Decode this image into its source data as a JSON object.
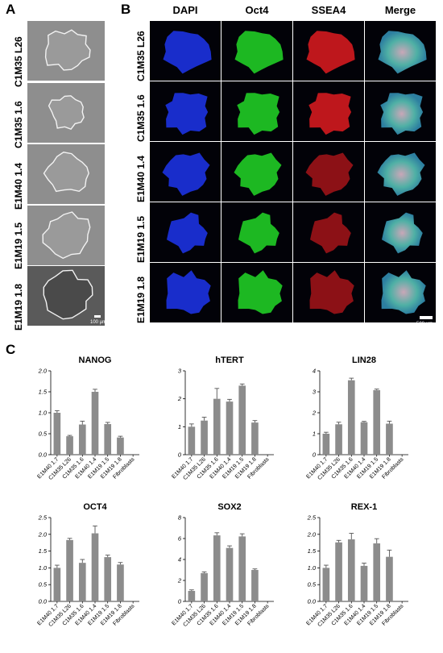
{
  "panels": {
    "a": "A",
    "b": "B",
    "c": "C"
  },
  "row_labels": [
    "C1M35 L26",
    "C1M35 1.6",
    "E1M40 1.4",
    "E1M19 1.5",
    "E1M19 1.8"
  ],
  "stain_headers": [
    "DAPI",
    "Oct4",
    "SSEA4",
    "Merge"
  ],
  "scale_a": "100 µm",
  "scale_b": "500 µm",
  "colors": {
    "bar": "#8c8c8c",
    "dapi": "#1a2fd6",
    "oct4": "#1fc224",
    "ssea4": "#c8181d"
  },
  "chart_data": [
    {
      "type": "bar",
      "title": "NANOG",
      "categories": [
        "E1M40 1.7",
        "C1M35 L26",
        "C1M35 1.6",
        "E1M40 1.4",
        "E1M19 1.5",
        "E1M19 1.8",
        "Fibroblasts"
      ],
      "values": [
        1.0,
        0.44,
        0.72,
        1.5,
        0.73,
        0.41,
        0
      ],
      "errors": [
        0.05,
        0.02,
        0.08,
        0.06,
        0.04,
        0.03,
        0
      ],
      "ylim": [
        0,
        2.0
      ],
      "yticks": [
        "0.0",
        "0.5",
        "1.0",
        "1.5",
        "2.0"
      ]
    },
    {
      "type": "bar",
      "title": "hTERT",
      "categories": [
        "E1M40 1.7",
        "C1M35 L26",
        "C1M35 1.6",
        "E1M40 1.4",
        "E1M19 1.5",
        "E1M19 1.8",
        "Fibroblasts"
      ],
      "values": [
        1.0,
        1.22,
        2.0,
        1.9,
        2.47,
        1.15,
        0
      ],
      "errors": [
        0.1,
        0.12,
        0.37,
        0.08,
        0.06,
        0.07,
        0
      ],
      "ylim": [
        0,
        3
      ],
      "yticks": [
        "0",
        "1",
        "2",
        "3"
      ]
    },
    {
      "type": "bar",
      "title": "LIN28",
      "categories": [
        "E1M40 1.7",
        "C1M35 L26",
        "C1M35 1.6",
        "E1M40 1.4",
        "E1M19 1.5",
        "E1M19 1.8",
        "Fibroblasts"
      ],
      "values": [
        1.0,
        1.45,
        3.55,
        1.55,
        3.08,
        1.48,
        0
      ],
      "errors": [
        0.07,
        0.1,
        0.1,
        0.04,
        0.05,
        0.12,
        0
      ],
      "ylim": [
        0,
        4
      ],
      "yticks": [
        "0",
        "1",
        "2",
        "3",
        "4"
      ]
    },
    {
      "type": "bar",
      "title": "OCT4",
      "categories": [
        "E1M40 1.7",
        "C1M35 L26",
        "C1M35 1.6",
        "E1M40 1.4",
        "E1M19 1.5",
        "E1M19 1.8",
        "Fibroblasts"
      ],
      "values": [
        1.0,
        1.83,
        1.15,
        2.03,
        1.32,
        1.1,
        0
      ],
      "errors": [
        0.08,
        0.05,
        0.1,
        0.22,
        0.06,
        0.06,
        0
      ],
      "ylim": [
        0,
        2.5
      ],
      "yticks": [
        "0.0",
        "0.5",
        "1.0",
        "1.5",
        "2.0",
        "2.5"
      ]
    },
    {
      "type": "bar",
      "title": "SOX2",
      "categories": [
        "E1M40 1.7",
        "C1M35 L26",
        "C1M35 1.6",
        "E1M40 1.4",
        "E1M19 1.5",
        "E1M19 1.8",
        "Fibroblasts"
      ],
      "values": [
        1.0,
        2.7,
        6.3,
        5.1,
        6.2,
        3.0,
        0
      ],
      "errors": [
        0.1,
        0.12,
        0.25,
        0.2,
        0.25,
        0.1,
        0
      ],
      "ylim": [
        0,
        8
      ],
      "yticks": [
        "0",
        "2",
        "4",
        "6",
        "8"
      ]
    },
    {
      "type": "bar",
      "title": "REX-1",
      "categories": [
        "E1M40 1.7",
        "C1M35 L26",
        "C1M35 1.6",
        "E1M40 1.4",
        "E1M19 1.5",
        "E1M19 1.8",
        "Fibroblasts"
      ],
      "values": [
        1.0,
        1.76,
        1.85,
        1.06,
        1.73,
        1.33,
        0
      ],
      "errors": [
        0.08,
        0.06,
        0.18,
        0.08,
        0.14,
        0.2,
        0
      ],
      "ylim": [
        0,
        2.5
      ],
      "yticks": [
        "0.0",
        "0.5",
        "1.0",
        "1.5",
        "2.0",
        "2.5"
      ]
    }
  ]
}
